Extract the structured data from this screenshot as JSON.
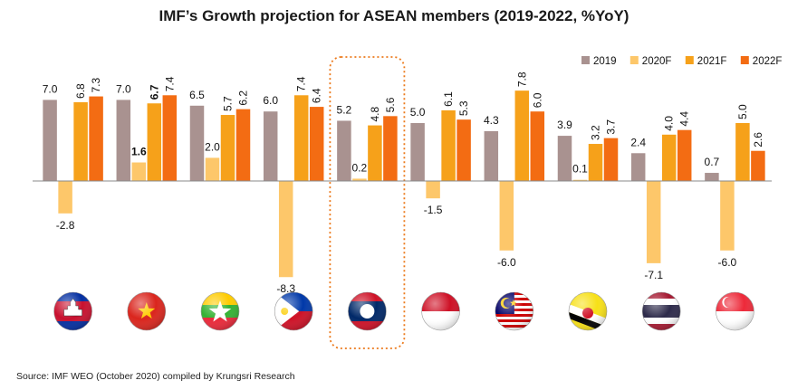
{
  "chart_data": {
    "type": "bar",
    "title": "IMF’s Growth projection for ASEAN members (2019-2022, %YoY)",
    "source": "Source: IMF WEO (October 2020) compiled by Krungsri Research",
    "categories": [
      "Cambodia",
      "Vietnam",
      "Myanmar",
      "Philippines",
      "Laos",
      "Indonesia",
      "Malaysia",
      "Brunei",
      "Thailand",
      "Singapore"
    ],
    "series": [
      {
        "name": "2019",
        "color": "#a99290",
        "values": [
          7.0,
          7.0,
          6.5,
          6.0,
          5.2,
          5.0,
          4.3,
          3.9,
          2.4,
          0.7
        ]
      },
      {
        "name": "2020F",
        "color": "#fdc76a",
        "values": [
          -2.8,
          1.6,
          2.0,
          -8.3,
          0.2,
          -1.5,
          -6.0,
          0.1,
          -7.1,
          -6.0
        ]
      },
      {
        "name": "2021F",
        "color": "#f6a11a",
        "values": [
          6.8,
          6.7,
          5.7,
          7.4,
          4.8,
          6.1,
          7.8,
          3.2,
          4.0,
          5.0
        ]
      },
      {
        "name": "2022F",
        "color": "#f36c13",
        "values": [
          7.3,
          7.4,
          6.2,
          6.4,
          5.6,
          5.3,
          6.0,
          3.7,
          4.4,
          2.6
        ]
      }
    ],
    "legend_position": "top-right",
    "highlight_category": "Laos",
    "highlight_labels": [
      {
        "category": "Vietnam",
        "series": "2020F",
        "color": "#f07c1f"
      },
      {
        "category": "Vietnam",
        "series": "2021F",
        "color": "#f07c1f"
      }
    ],
    "axis_color": "#888888",
    "flag_icons": [
      "cambodia-flag-icon",
      "vietnam-flag-icon",
      "myanmar-flag-icon",
      "philippines-flag-icon",
      "laos-flag-icon",
      "indonesia-flag-icon",
      "malaysia-flag-icon",
      "brunei-flag-icon",
      "thailand-flag-icon",
      "singapore-flag-icon"
    ]
  }
}
